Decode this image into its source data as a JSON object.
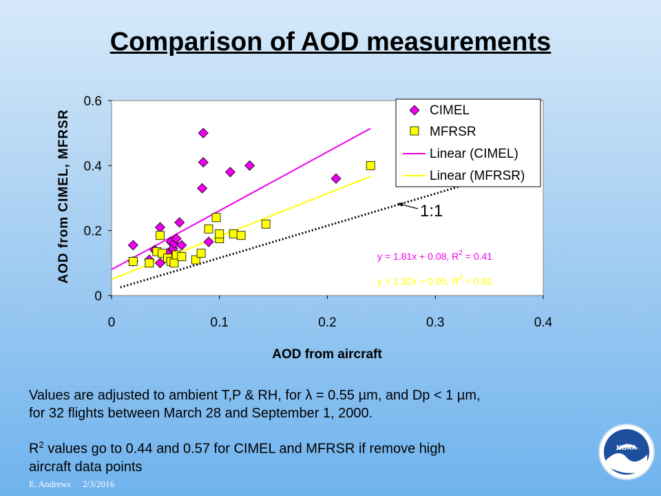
{
  "slide": {
    "title": "Comparison of AOD measurements",
    "note1_line1": "Values are adjusted to ambient T,P & RH, for λ = 0.55 µm, and Dp < 1 µm,",
    "note1_line2": "for 32 flights between March 28 and September 1, 2000.",
    "note2_line1_prefix": "R",
    "note2_line1_sup": "2",
    "note2_line1_rest": " values go to 0.44 and 0.57 for CIMEL and MFRSR if remove high",
    "note2_line2": "aircraft data points",
    "footer_author": "E. Andrews",
    "footer_date": "2/3/2016",
    "logo_text": "NOAA"
  },
  "chart_data": {
    "type": "scatter",
    "xlabel": "AOD from aircraft",
    "ylabel": "AOD from CIMEL, MFRSR",
    "xlim": [
      0,
      0.4
    ],
    "ylim": [
      0,
      0.6
    ],
    "xticks": [
      "0",
      "0.1",
      "0.2",
      "0.3",
      "0.4"
    ],
    "yticks": [
      "0",
      "0.2",
      "0.4",
      "0.6"
    ],
    "legend_position": "top-right",
    "series": [
      {
        "name": "CIMEL",
        "marker": "diamond",
        "color": "#ee00ee",
        "points": [
          [
            0.02,
            0.155
          ],
          [
            0.02,
            0.105
          ],
          [
            0.035,
            0.11
          ],
          [
            0.04,
            0.14
          ],
          [
            0.045,
            0.21
          ],
          [
            0.045,
            0.1
          ],
          [
            0.05,
            0.125
          ],
          [
            0.052,
            0.13
          ],
          [
            0.055,
            0.165
          ],
          [
            0.057,
            0.145
          ],
          [
            0.058,
            0.16
          ],
          [
            0.06,
            0.175
          ],
          [
            0.063,
            0.225
          ],
          [
            0.065,
            0.155
          ],
          [
            0.085,
            0.5
          ],
          [
            0.085,
            0.41
          ],
          [
            0.084,
            0.33
          ],
          [
            0.09,
            0.165
          ],
          [
            0.11,
            0.38
          ],
          [
            0.128,
            0.4
          ],
          [
            0.208,
            0.36
          ]
        ]
      },
      {
        "name": "MFRSR",
        "marker": "square",
        "color": "#ffff00",
        "points": [
          [
            0.02,
            0.105
          ],
          [
            0.035,
            0.1
          ],
          [
            0.042,
            0.135
          ],
          [
            0.045,
            0.185
          ],
          [
            0.047,
            0.13
          ],
          [
            0.052,
            0.115
          ],
          [
            0.055,
            0.105
          ],
          [
            0.058,
            0.1
          ],
          [
            0.06,
            0.125
          ],
          [
            0.065,
            0.12
          ],
          [
            0.078,
            0.11
          ],
          [
            0.083,
            0.13
          ],
          [
            0.09,
            0.205
          ],
          [
            0.097,
            0.24
          ],
          [
            0.1,
            0.175
          ],
          [
            0.1,
            0.19
          ],
          [
            0.113,
            0.19
          ],
          [
            0.12,
            0.185
          ],
          [
            0.143,
            0.22
          ],
          [
            0.24,
            0.4
          ]
        ]
      }
    ],
    "fits": [
      {
        "name": "Linear (CIMEL)",
        "slope": 1.81,
        "intercept": 0.08,
        "x_range": [
          0,
          0.24
        ],
        "color": "#ee00ee",
        "equation": "y = 1.81x + 0.08, R",
        "r2_sup": "2",
        "r2_value": " = 0.41"
      },
      {
        "name": "Linear (MFRSR)",
        "slope": 1.32,
        "intercept": 0.05,
        "x_range": [
          0,
          0.24
        ],
        "color": "#ffff00",
        "equation": "y = 1.32x + 0.05, R",
        "r2_sup": "2",
        "r2_value": " = 0.81"
      }
    ],
    "reference_line": {
      "label": "1:1",
      "slope": 1,
      "intercept": 0,
      "x_range": [
        0.005,
        0.4
      ],
      "color": "#000000"
    }
  }
}
